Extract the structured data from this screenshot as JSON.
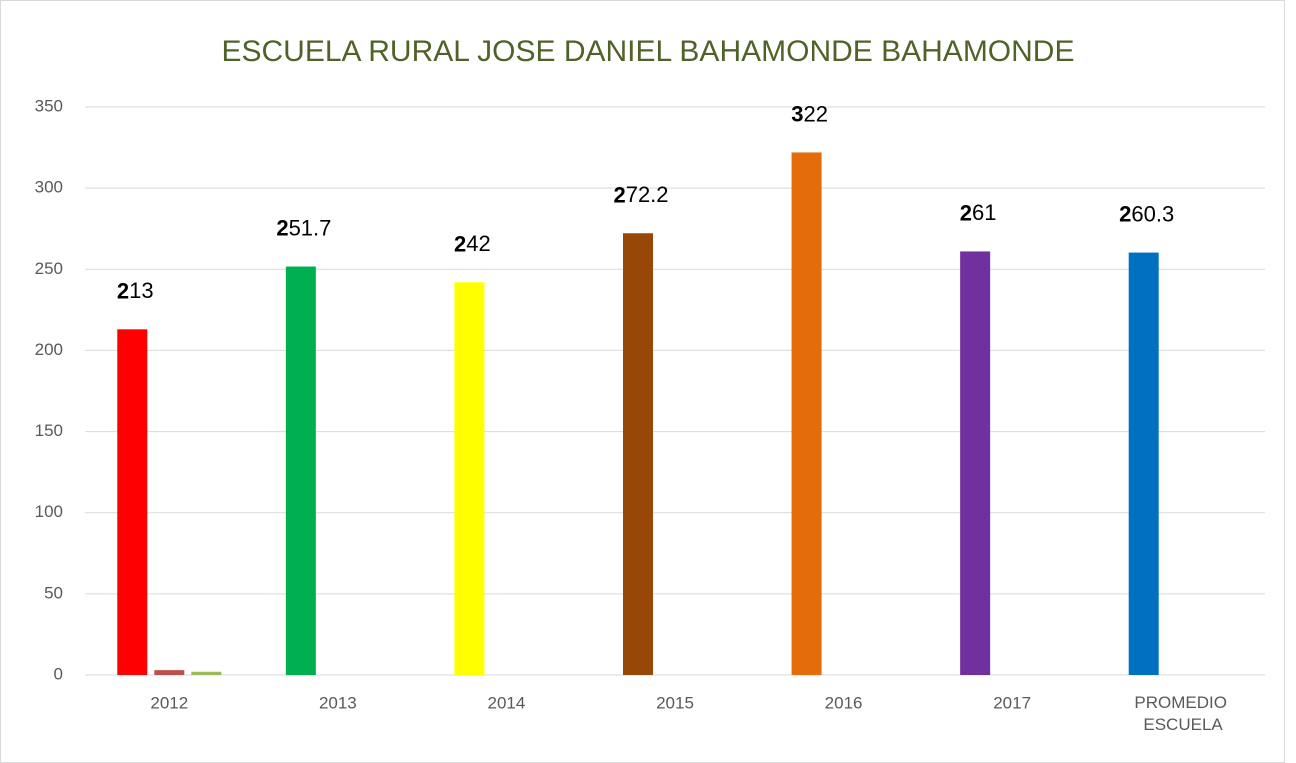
{
  "chart_data": {
    "type": "bar",
    "title": "ESCUELA RURAL JOSE DANIEL BAHAMONDE BAHAMONDE",
    "categories": [
      "2012",
      "2013",
      "2014",
      "2015",
      "2016",
      "2017",
      "PROMEDIO ESCUELA"
    ],
    "series": [
      {
        "colors": [
          "#ff0000",
          "#00b050",
          "#ffff00",
          "#974706",
          "#e46c0a",
          "#7030a0",
          "#0070c0"
        ],
        "values": [
          213,
          251.7,
          242,
          272.2,
          322,
          261,
          260.3
        ]
      },
      {
        "color": "#c0504d",
        "values": [
          3,
          0,
          0,
          0,
          0,
          0,
          0
        ]
      },
      {
        "color": "#9bbb59",
        "values": [
          2,
          0,
          0,
          0,
          0,
          0,
          0
        ]
      }
    ],
    "ylim": [
      0,
      350
    ],
    "yticks": [
      0,
      50,
      100,
      150,
      200,
      250,
      300,
      350
    ],
    "grid": true
  }
}
